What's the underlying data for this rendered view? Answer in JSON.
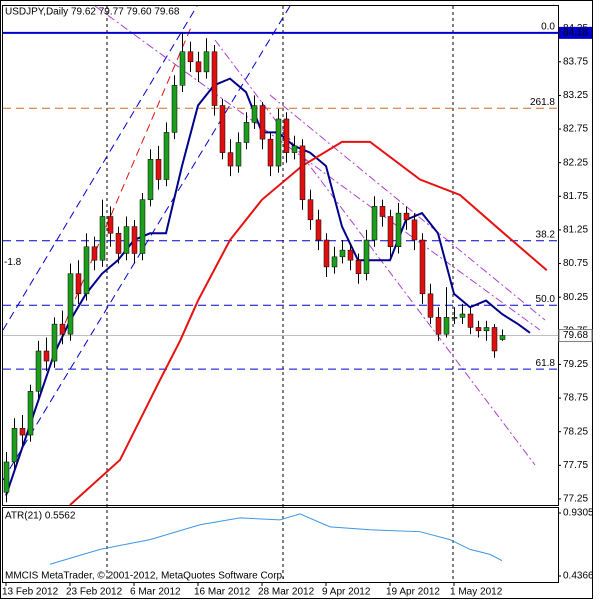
{
  "chart_data": [
    {
      "type": "candlestick",
      "title": "USDJPY,Daily  79.62 79.77 79.60 79.68",
      "open": [
        77.35,
        77.8,
        78.3,
        78.2,
        78.85,
        79.45,
        79.3,
        79.85,
        79.7,
        80.6,
        80.3,
        81.0,
        80.8,
        81.45,
        81.2,
        80.9,
        81.3,
        80.9,
        81.7,
        82.3,
        82.0,
        82.7,
        83.4,
        83.9,
        83.75,
        83.6,
        83.9,
        83.1,
        82.4,
        82.2,
        82.55,
        82.85,
        83.1,
        82.6,
        82.2,
        82.9,
        82.4,
        82.5,
        81.7,
        81.4,
        81.1,
        80.7,
        80.85,
        80.95,
        80.8,
        80.6,
        81.1,
        81.6,
        81.45,
        81.0,
        81.5,
        81.4,
        81.1,
        80.3,
        79.95,
        79.7,
        79.95,
        79.95,
        80.0,
        79.8,
        79.75,
        79.8,
        79.62
      ],
      "high": [
        77.95,
        78.45,
        78.5,
        78.95,
        79.6,
        79.65,
        79.95,
        80.05,
        80.75,
        80.8,
        81.2,
        81.15,
        81.7,
        81.6,
        81.3,
        81.45,
        81.4,
        81.8,
        82.45,
        82.5,
        82.85,
        83.55,
        84.18,
        84.05,
        83.9,
        84.1,
        84.0,
        83.2,
        82.6,
        82.7,
        83.0,
        83.25,
        83.15,
        82.7,
        83.05,
        83.0,
        82.65,
        82.6,
        81.85,
        81.55,
        81.2,
        81.0,
        81.1,
        81.05,
        80.9,
        81.25,
        81.75,
        81.7,
        81.55,
        81.65,
        81.6,
        81.5,
        81.2,
        80.45,
        80.1,
        80.4,
        80.1,
        80.15,
        80.1,
        79.9,
        79.9,
        79.85,
        79.77
      ],
      "low": [
        77.2,
        77.7,
        78.05,
        78.1,
        78.75,
        79.15,
        79.2,
        79.55,
        79.6,
        80.15,
        80.2,
        80.65,
        80.7,
        81.0,
        80.75,
        80.8,
        80.75,
        80.8,
        81.6,
        81.85,
        81.9,
        82.6,
        83.3,
        83.6,
        83.45,
        83.5,
        82.95,
        82.3,
        82.05,
        82.1,
        82.45,
        82.75,
        82.45,
        82.05,
        82.1,
        82.25,
        82.3,
        81.55,
        81.25,
        80.95,
        80.55,
        80.6,
        80.75,
        80.65,
        80.45,
        80.5,
        81.0,
        81.3,
        80.85,
        80.9,
        81.25,
        80.95,
        80.15,
        79.85,
        79.6,
        79.65,
        79.85,
        79.85,
        79.7,
        79.65,
        79.6,
        79.35,
        79.6
      ],
      "close": [
        77.8,
        78.3,
        78.2,
        78.85,
        79.45,
        79.3,
        79.85,
        79.7,
        80.6,
        80.3,
        81.0,
        80.8,
        81.45,
        81.2,
        80.9,
        81.3,
        80.9,
        81.7,
        82.3,
        82.0,
        82.7,
        83.4,
        83.9,
        83.75,
        83.6,
        83.9,
        83.1,
        82.4,
        82.2,
        82.55,
        82.85,
        83.1,
        82.6,
        82.2,
        82.9,
        82.4,
        82.5,
        81.7,
        81.4,
        81.1,
        80.7,
        80.85,
        80.95,
        80.8,
        80.6,
        81.1,
        81.6,
        81.45,
        81.0,
        81.5,
        81.4,
        81.1,
        80.3,
        79.95,
        79.7,
        79.95,
        79.95,
        80.0,
        79.8,
        79.75,
        79.8,
        79.45,
        79.68
      ],
      "bull_color": "#1e9e1e",
      "bear_color": "#e01010",
      "xlim": [
        -0.75,
        69
      ],
      "ylim": [
        77.16,
        84.55
      ],
      "yticks": [
        84.25,
        83.75,
        83.25,
        82.75,
        82.25,
        81.75,
        81.25,
        80.75,
        80.25,
        79.75,
        79.25,
        78.75,
        78.25,
        77.75,
        77.25
      ],
      "series": [
        {
          "color": "#00008b",
          "x": [
            0,
            2,
            4,
            6,
            8,
            10,
            12,
            14,
            16,
            18,
            20,
            22,
            24,
            26,
            28,
            30,
            32,
            34,
            36,
            38,
            40,
            42,
            44,
            46,
            48,
            50,
            52,
            54,
            56,
            58,
            60,
            62,
            64,
            65.5
          ],
          "values": [
            77.3,
            78.0,
            78.7,
            79.4,
            79.9,
            80.3,
            80.6,
            80.8,
            81.1,
            81.2,
            81.2,
            82.2,
            83.1,
            83.4,
            83.5,
            83.3,
            82.7,
            82.7,
            82.5,
            82.4,
            82.2,
            81.3,
            80.8,
            80.8,
            80.8,
            81.4,
            81.5,
            81.2,
            80.3,
            80.1,
            80.2,
            80.0,
            79.85,
            79.72
          ]
        },
        {
          "color": "#e81010",
          "x": [
            8,
            14.25,
            19.25,
            21.75,
            24,
            28,
            32,
            37,
            42,
            45.5,
            51.75,
            56.75,
            61.75,
            67.6
          ],
          "values": [
            77.16,
            77.83,
            79.02,
            79.6,
            80.2,
            81.1,
            81.7,
            82.2,
            82.56,
            82.56,
            82.0,
            81.77,
            81.25,
            80.65
          ]
        }
      ],
      "levels": [
        {
          "value": 84.18,
          "label": "0.0",
          "color": "#0000cd",
          "style": "solid"
        },
        {
          "value": 83.06,
          "label": "261.8",
          "color": "#d2691e",
          "style": "dashed"
        },
        {
          "value": 81.09,
          "label": "38.2",
          "color": "#0000cd",
          "style": "dashed"
        },
        {
          "value": 80.13,
          "label": "50.0",
          "color": "#0000cd",
          "style": "dashed"
        },
        {
          "value": 79.18,
          "label": "61.8",
          "color": "#0000cd",
          "style": "dashed"
        }
      ],
      "annotations": [
        {
          "text": "-1.8",
          "y": 80.77
        }
      ]
    },
    {
      "type": "line",
      "title": "ATR(21) 0.5562",
      "color": "#3c96e6",
      "x": [
        5.5,
        11.75,
        18,
        24.25,
        29.25,
        34.25,
        36.75,
        40.5,
        45.5,
        51.75,
        55.5,
        58,
        60.5,
        62
      ],
      "values": [
        0.529,
        0.645,
        0.722,
        0.838,
        0.892,
        0.877,
        0.923,
        0.822,
        0.799,
        0.784,
        0.722,
        0.645,
        0.606,
        0.5562
      ],
      "xlim": [
        -0.75,
        69
      ],
      "ylim": [
        0.4366,
        0.9305
      ],
      "yticks": [
        0.9305,
        0.4366
      ],
      "xticks": [
        {
          "value": 0,
          "label": "13 Feb 2012"
        },
        {
          "value": 8,
          "label": "23 Feb 2012"
        },
        {
          "value": 16,
          "label": "6 Mar 2012"
        },
        {
          "value": 24,
          "label": "16 Mar 2012"
        },
        {
          "value": 32,
          "label": "28 Mar 2012"
        },
        {
          "value": 40,
          "label": "9 Apr 2012"
        },
        {
          "value": 48,
          "label": "19 Apr 2012"
        },
        {
          "value": 56,
          "label": "1 May 2012"
        }
      ],
      "annotation": "MMCIS MetaTrader, © 2001-2012, MetaQuotes Software Corp."
    }
  ]
}
